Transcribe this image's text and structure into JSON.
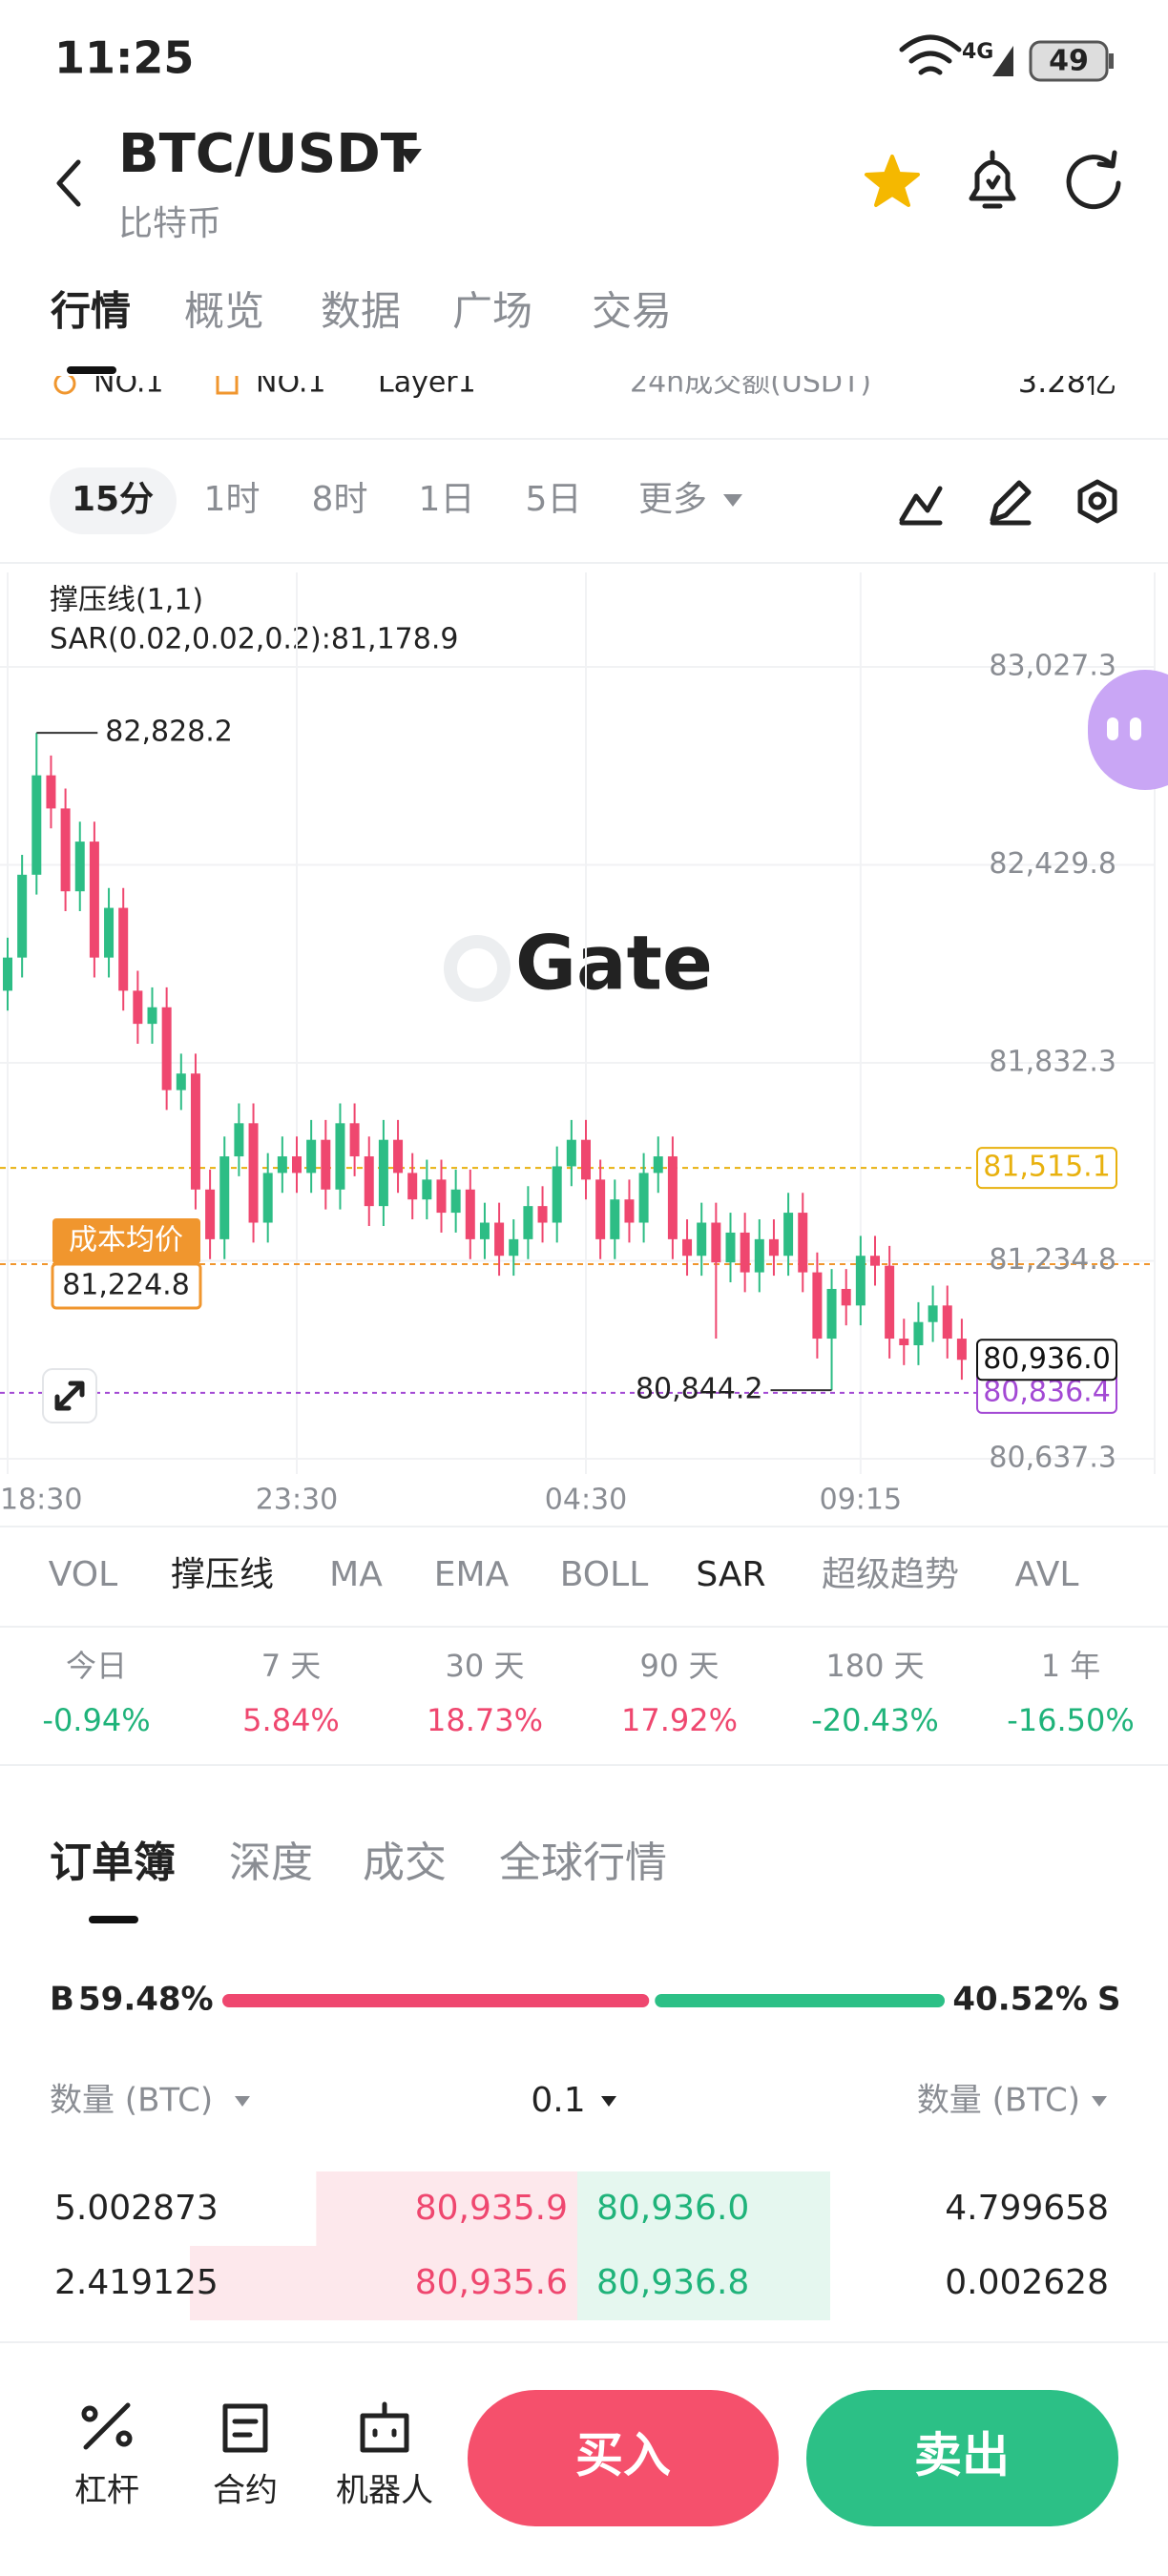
{
  "status_bar": {
    "time": "11:25",
    "network": "4G",
    "battery": "49"
  },
  "header": {
    "pair": "BTC/USDT",
    "subtitle": "比特币"
  },
  "tabs": [
    "行情",
    "概览",
    "数据",
    "广场",
    "交易"
  ],
  "info_row": [
    "NO.1",
    "NO.1",
    "Layer1",
    "24h成交额(USDT)",
    "3.28亿"
  ],
  "intervals": [
    "15分",
    "1时",
    "8时",
    "1日",
    "5日",
    "更多"
  ],
  "watermark": "Gate",
  "chart_data": {
    "type": "candlestick",
    "indicator_label": "撑压线(1,1)",
    "sar_label": "SAR(0.02,0.02,0.2):81,178.9",
    "up_color": "#2dbd85",
    "down_color": "#ef476f",
    "categories": [
      "18:30",
      null,
      null,
      null,
      null,
      null,
      null,
      null,
      null,
      null,
      null,
      null,
      null,
      null,
      null,
      null,
      null,
      null,
      null,
      null,
      "23:30",
      null,
      null,
      null,
      null,
      null,
      null,
      null,
      null,
      null,
      null,
      null,
      null,
      null,
      null,
      null,
      null,
      null,
      null,
      null,
      "04:30",
      null,
      null,
      null,
      null,
      null,
      null,
      null,
      null,
      null,
      null,
      null,
      null,
      null,
      null,
      null,
      null,
      null,
      null,
      "09:15",
      null,
      null,
      null,
      null,
      null,
      null,
      null
    ],
    "open": [
      82050,
      82150,
      82400,
      82700,
      82600,
      82350,
      82500,
      82150,
      82300,
      82050,
      81950,
      82000,
      81750,
      81800,
      81450,
      81300,
      81550,
      81650,
      81350,
      81500,
      81550,
      81500,
      81600,
      81450,
      81650,
      81550,
      81400,
      81600,
      81500,
      81420,
      81480,
      81380,
      81450,
      81300,
      81350,
      81250,
      81300,
      81400,
      81350,
      81520,
      81600,
      81480,
      81300,
      81420,
      81350,
      81500,
      81550,
      81300,
      81250,
      81350,
      81230,
      81320,
      81200,
      81300,
      81250,
      81380,
      81200,
      81000,
      81150,
      81100,
      81250,
      81220,
      81000,
      80980,
      81050,
      81100,
      81000
    ],
    "high": [
      82210,
      82460,
      82828.2,
      82760,
      82660,
      82560,
      82560,
      82360,
      82360,
      82110,
      82060,
      82060,
      81860,
      81860,
      81510,
      81610,
      81710,
      81710,
      81560,
      81610,
      81610,
      81660,
      81660,
      81710,
      81710,
      81610,
      81660,
      81660,
      81560,
      81540,
      81540,
      81510,
      81510,
      81410,
      81410,
      81360,
      81460,
      81460,
      81580,
      81660,
      81660,
      81540,
      81480,
      81480,
      81560,
      81610,
      81610,
      81360,
      81410,
      81410,
      81380,
      81380,
      81360,
      81360,
      81440,
      81440,
      81260,
      81210,
      81210,
      81310,
      81310,
      81280,
      81060,
      81110,
      81160,
      81160,
      81060
    ],
    "low": [
      81990,
      82090,
      82340,
      82540,
      82290,
      82290,
      82090,
      82090,
      81990,
      81890,
      81890,
      81690,
      81690,
      81390,
      81240,
      81240,
      81490,
      81290,
      81290,
      81440,
      81440,
      81440,
      81390,
      81390,
      81490,
      81340,
      81340,
      81440,
      81360,
      81360,
      81320,
      81320,
      81240,
      81240,
      81190,
      81190,
      81240,
      81290,
      81290,
      81460,
      81420,
      81240,
      81240,
      81290,
      81290,
      81440,
      81240,
      81190,
      81190,
      81000,
      81170,
      81140,
      81140,
      81190,
      81190,
      81140,
      80940,
      80844.2,
      81040,
      81040,
      81160,
      80940,
      80920,
      80920,
      80990,
      80940,
      80876
    ],
    "close": [
      82150,
      82400,
      82700,
      82600,
      82350,
      82500,
      82150,
      82300,
      82050,
      81950,
      82000,
      81750,
      81800,
      81450,
      81300,
      81550,
      81650,
      81350,
      81500,
      81550,
      81500,
      81600,
      81450,
      81650,
      81550,
      81400,
      81600,
      81500,
      81420,
      81480,
      81380,
      81450,
      81300,
      81350,
      81250,
      81300,
      81400,
      81350,
      81520,
      81600,
      81480,
      81300,
      81420,
      81350,
      81500,
      81550,
      81300,
      81250,
      81350,
      81230,
      81320,
      81200,
      81300,
      81250,
      81380,
      81200,
      81000,
      81150,
      81100,
      81250,
      81220,
      81000,
      80980,
      81050,
      81100,
      81000,
      80936
    ],
    "ylim": [
      80591.3,
      83312.3
    ],
    "yticks": [
      {
        "value": 83027.3,
        "label": "83,027.3"
      },
      {
        "value": 82429.8,
        "label": "82,429.8"
      },
      {
        "value": 81832.3,
        "label": "81,832.3"
      },
      {
        "value": 81234.8,
        "label": "81,234.8"
      },
      {
        "value": 80637.3,
        "label": "80,637.3"
      }
    ],
    "grid": true,
    "max_label": {
      "value": 82828.2,
      "label": "82,828.2"
    },
    "min_label": {
      "value": 80844.2,
      "label": "80,844.2"
    },
    "resistance": {
      "value": 81515.1,
      "label": "81,515.1",
      "color": "#e8b10e"
    },
    "cost_average": {
      "title": "成本均价",
      "value": 81224.8,
      "label": "81,224.8",
      "color": "#f0962e"
    },
    "last_price": {
      "value": 80936.0,
      "label": "80,936.0",
      "color": "#111111"
    },
    "mark_price": {
      "value": 80836.4,
      "label": "80,836.4",
      "color": "#a349d4"
    }
  },
  "indicators": [
    "VOL",
    "撑压线",
    "MA",
    "EMA",
    "BOLL",
    "SAR",
    "超级趋势",
    "AVL"
  ],
  "performance": [
    {
      "period": "今日",
      "change": "-0.94%"
    },
    {
      "period": "7 天",
      "change": "5.84%"
    },
    {
      "period": "30 天",
      "change": "18.73%"
    },
    {
      "period": "90 天",
      "change": "17.92%"
    },
    {
      "period": "180 天",
      "change": "-20.43%"
    },
    {
      "period": "1 年",
      "change": "-16.50%"
    }
  ],
  "orderbook": {
    "tabs": [
      "订单簿",
      "深度",
      "成交",
      "全球行情"
    ],
    "buy_side": "B",
    "buy_ratio": {
      "value": 59.48,
      "label": "59.48%"
    },
    "sell_ratio": {
      "value": 40.52,
      "label": "40.52%"
    },
    "sell_side": "S",
    "headers": [
      "数量 (BTC)",
      "0.1",
      "数量 (BTC)"
    ],
    "rows": [
      {
        "bid_qty": 5.002873,
        "bid_price": {
          "value": 80935.9,
          "label": "80,935.9"
        },
        "ask_price": {
          "value": 80936.0,
          "label": "80,936.0"
        },
        "ask_qty": 4.799658
      },
      {
        "bid_qty": 2.419125,
        "bid_price": {
          "value": 80935.6,
          "label": "80,935.6"
        },
        "ask_price": {
          "value": 80936.8,
          "label": "80,936.8"
        },
        "ask_qty": 0.002628
      }
    ]
  },
  "bottom_nav": [
    "杠杆",
    "合约",
    "机器人"
  ],
  "buy_button": "买入",
  "sell_button": "卖出"
}
